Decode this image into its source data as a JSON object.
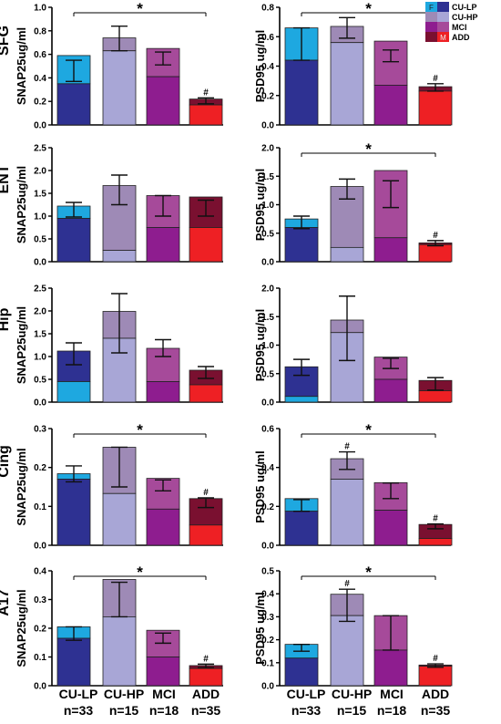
{
  "legend": {
    "placement": "top-right",
    "sex_labels": [
      "F",
      "M"
    ],
    "entries": [
      {
        "group": "CU-LP"
      },
      {
        "group": "CU-HP"
      },
      {
        "group": "MCI"
      },
      {
        "group": "ADD"
      }
    ]
  },
  "colors": {
    "CU-LP": {
      "female": "#1ea8e0",
      "male": "#2e3192"
    },
    "CU-HP": {
      "female": "#9e8ab6",
      "male": "#a8a6d6"
    },
    "MCI": {
      "female": "#8e1d8f",
      "male": "#a64a9a"
    },
    "ADD": {
      "female": "#7a1030",
      "male": "#ee2024"
    }
  },
  "x_axis": {
    "groups": [
      "CU-LP",
      "CU-HP",
      "MCI",
      "ADD"
    ],
    "counts": [
      "n=33",
      "n=15",
      "n=18",
      "n=35"
    ]
  },
  "chart_data": [
    {
      "type": "bar",
      "region": "SFG",
      "ylabel": "SNAP25ug/ml",
      "ylim": [
        0,
        1.0
      ],
      "yticks": [
        "0.0",
        "0.2",
        "0.4",
        "0.6",
        "0.8",
        "1.0"
      ],
      "categories": [
        "CU-LP",
        "CU-HP",
        "MCI",
        "ADD"
      ],
      "totals": [
        0.59,
        0.74,
        0.65,
        0.22
      ],
      "lower_segment": [
        0.35,
        0.63,
        0.41,
        0.17
      ],
      "lower_sex": [
        "M",
        "M",
        "F",
        "M"
      ],
      "error_low": [
        0.37,
        0.63,
        0.51,
        0.18
      ],
      "error_high": [
        0.55,
        0.84,
        0.62,
        0.23
      ],
      "significance": {
        "star_label": "*",
        "from": "CU-LP",
        "to": "ADD"
      },
      "hash": [
        "",
        "",
        "",
        "#"
      ]
    },
    {
      "type": "bar",
      "region": "",
      "ylabel": "PSD95 ug/ml",
      "ylim": [
        0,
        0.8
      ],
      "yticks": [
        "0.0",
        "0.2",
        "0.4",
        "0.6",
        "0.8"
      ],
      "categories": [
        "CU-LP",
        "CU-HP",
        "MCI",
        "ADD"
      ],
      "totals": [
        0.66,
        0.67,
        0.57,
        0.26
      ],
      "lower_segment": [
        0.44,
        0.56,
        0.27,
        0.23
      ],
      "lower_sex": [
        "M",
        "M",
        "F",
        "M"
      ],
      "error_low": [
        0.44,
        0.59,
        0.43,
        0.23
      ],
      "error_high": [
        0.66,
        0.73,
        0.51,
        0.28
      ],
      "significance": {
        "star_label": "*",
        "from": "CU-LP",
        "to": "ADD"
      },
      "hash": [
        "",
        "",
        "",
        "#"
      ]
    },
    {
      "type": "bar",
      "region": "ENT",
      "ylabel": "SNAP25ug/ml",
      "ylim": [
        0,
        2.5
      ],
      "yticks": [
        "0.0",
        "0.5",
        "1.0",
        "1.5",
        "2.0",
        "2.5"
      ],
      "categories": [
        "CU-LP",
        "CU-HP",
        "MCI",
        "ADD"
      ],
      "totals": [
        1.22,
        1.67,
        1.45,
        1.42
      ],
      "lower_segment": [
        0.95,
        0.25,
        0.75,
        0.75
      ],
      "lower_sex": [
        "M",
        "M",
        "F",
        "M"
      ],
      "error_low": [
        0.98,
        1.25,
        1.0,
        1.0
      ],
      "error_high": [
        1.3,
        1.9,
        1.45,
        1.35
      ],
      "significance": null,
      "hash": [
        "",
        "",
        "",
        ""
      ]
    },
    {
      "type": "bar",
      "region": "",
      "ylabel": "PSD95 ug/ml",
      "ylim": [
        0,
        2.0
      ],
      "yticks": [
        "0.0",
        "0.5",
        "1.0",
        "1.5",
        "2.0"
      ],
      "categories": [
        "CU-LP",
        "CU-HP",
        "MCI",
        "ADD"
      ],
      "totals": [
        0.75,
        1.32,
        1.6,
        0.33
      ],
      "lower_segment": [
        0.6,
        0.25,
        0.42,
        0.3
      ],
      "lower_sex": [
        "M",
        "M",
        "F",
        "M"
      ],
      "error_low": [
        0.58,
        1.1,
        0.95,
        0.28
      ],
      "error_high": [
        0.8,
        1.45,
        1.42,
        0.37
      ],
      "significance": {
        "star_label": "*",
        "from": "CU-LP",
        "to": "ADD"
      },
      "hash": [
        "",
        "",
        "",
        "#"
      ]
    },
    {
      "type": "bar",
      "region": "Hip",
      "ylabel": "SNAP25ug/ml",
      "ylim": [
        0,
        2.5
      ],
      "yticks": [
        "0.0",
        "0.5",
        "1.0",
        "1.5",
        "2.0",
        "2.5"
      ],
      "categories": [
        "CU-LP",
        "CU-HP",
        "MCI",
        "ADD"
      ],
      "totals": [
        1.12,
        1.99,
        1.18,
        0.7
      ],
      "lower_segment": [
        0.45,
        1.4,
        0.45,
        0.38
      ],
      "lower_sex": [
        "F",
        "M",
        "F",
        "M"
      ],
      "error_low": [
        0.82,
        1.08,
        1.0,
        0.52
      ],
      "error_high": [
        1.3,
        2.38,
        1.37,
        0.78
      ],
      "significance": null,
      "hash": [
        "",
        "",
        "",
        ""
      ]
    },
    {
      "type": "bar",
      "region": "",
      "ylabel": "PSD95 ug/ml",
      "ylim": [
        0,
        2.0
      ],
      "yticks": [
        "0.0",
        "0.5",
        "1.0",
        "1.5",
        "2.0"
      ],
      "categories": [
        "CU-LP",
        "CU-HP",
        "MCI",
        "ADD"
      ],
      "totals": [
        0.62,
        1.44,
        0.79,
        0.38
      ],
      "lower_segment": [
        0.1,
        1.22,
        0.4,
        0.2
      ],
      "lower_sex": [
        "F",
        "M",
        "F",
        "M"
      ],
      "error_low": [
        0.47,
        0.73,
        0.59,
        0.21
      ],
      "error_high": [
        0.75,
        1.86,
        0.77,
        0.43
      ],
      "significance": null,
      "hash": [
        "",
        "",
        "",
        ""
      ]
    },
    {
      "type": "bar",
      "region": "Cing",
      "ylabel": "SNAP25ug/ml",
      "ylim": [
        0,
        0.3
      ],
      "yticks": [
        "0.0",
        "0.1",
        "0.2",
        "0.3"
      ],
      "categories": [
        "CU-LP",
        "CU-HP",
        "MCI",
        "ADD"
      ],
      "totals": [
        0.184,
        0.252,
        0.172,
        0.12
      ],
      "lower_segment": [
        0.17,
        0.133,
        0.093,
        0.052
      ],
      "lower_sex": [
        "M",
        "M",
        "F",
        "M"
      ],
      "error_low": [
        0.163,
        0.15,
        0.14,
        0.097
      ],
      "error_high": [
        0.204,
        0.252,
        0.168,
        0.122
      ],
      "significance": {
        "star_label": "*",
        "from": "CU-LP",
        "to": "ADD"
      },
      "hash": [
        "",
        "",
        "",
        "#"
      ]
    },
    {
      "type": "bar",
      "region": "",
      "ylabel": "PSD95 ug/ml",
      "ylim": [
        0,
        0.6
      ],
      "yticks": [
        "0.0",
        "0.2",
        "0.4",
        "0.6"
      ],
      "categories": [
        "CU-LP",
        "CU-HP",
        "MCI",
        "ADD"
      ],
      "totals": [
        0.24,
        0.445,
        0.322,
        0.107
      ],
      "lower_segment": [
        0.175,
        0.34,
        0.18,
        0.035
      ],
      "lower_sex": [
        "M",
        "M",
        "F",
        "M"
      ],
      "error_low": [
        0.175,
        0.39,
        0.24,
        0.085
      ],
      "error_high": [
        0.235,
        0.48,
        0.32,
        0.11
      ],
      "significance": {
        "star_label": "*",
        "from": "CU-LP",
        "to": "ADD"
      },
      "hash": [
        "",
        "#",
        "",
        "#"
      ]
    },
    {
      "type": "bar",
      "region": "A17",
      "ylabel": "SNAP25ug/ml",
      "ylim": [
        0,
        0.4
      ],
      "yticks": [
        "0.0",
        "0.1",
        "0.2",
        "0.3",
        "0.4"
      ],
      "categories": [
        "CU-LP",
        "CU-HP",
        "MCI",
        "ADD"
      ],
      "totals": [
        0.205,
        0.37,
        0.193,
        0.07
      ],
      "lower_segment": [
        0.165,
        0.24,
        0.1,
        0.06
      ],
      "lower_sex": [
        "M",
        "M",
        "F",
        "M"
      ],
      "error_low": [
        0.158,
        0.24,
        0.148,
        0.063
      ],
      "error_high": [
        0.205,
        0.36,
        0.183,
        0.075
      ],
      "significance": {
        "star_label": "*",
        "from": "CU-LP",
        "to": "ADD"
      },
      "hash": [
        "",
        "",
        "",
        "#"
      ]
    },
    {
      "type": "bar",
      "region": "",
      "ylabel": "PSD95 ug/ml",
      "ylim": [
        0,
        0.5
      ],
      "yticks": [
        "0.0",
        "0.1",
        "0.2",
        "0.3",
        "0.4",
        "0.5"
      ],
      "categories": [
        "CU-LP",
        "CU-HP",
        "MCI",
        "ADD"
      ],
      "totals": [
        0.18,
        0.398,
        0.305,
        0.09
      ],
      "lower_segment": [
        0.12,
        0.305,
        0.155,
        0.085
      ],
      "lower_sex": [
        "M",
        "M",
        "F",
        "M"
      ],
      "error_low": [
        0.15,
        0.28,
        0.155,
        0.08
      ],
      "error_high": [
        0.18,
        0.42,
        0.305,
        0.095
      ],
      "significance": {
        "star_label": "*",
        "from": "CU-LP",
        "to": "ADD"
      },
      "hash": [
        "",
        "#",
        "",
        "#"
      ]
    }
  ]
}
